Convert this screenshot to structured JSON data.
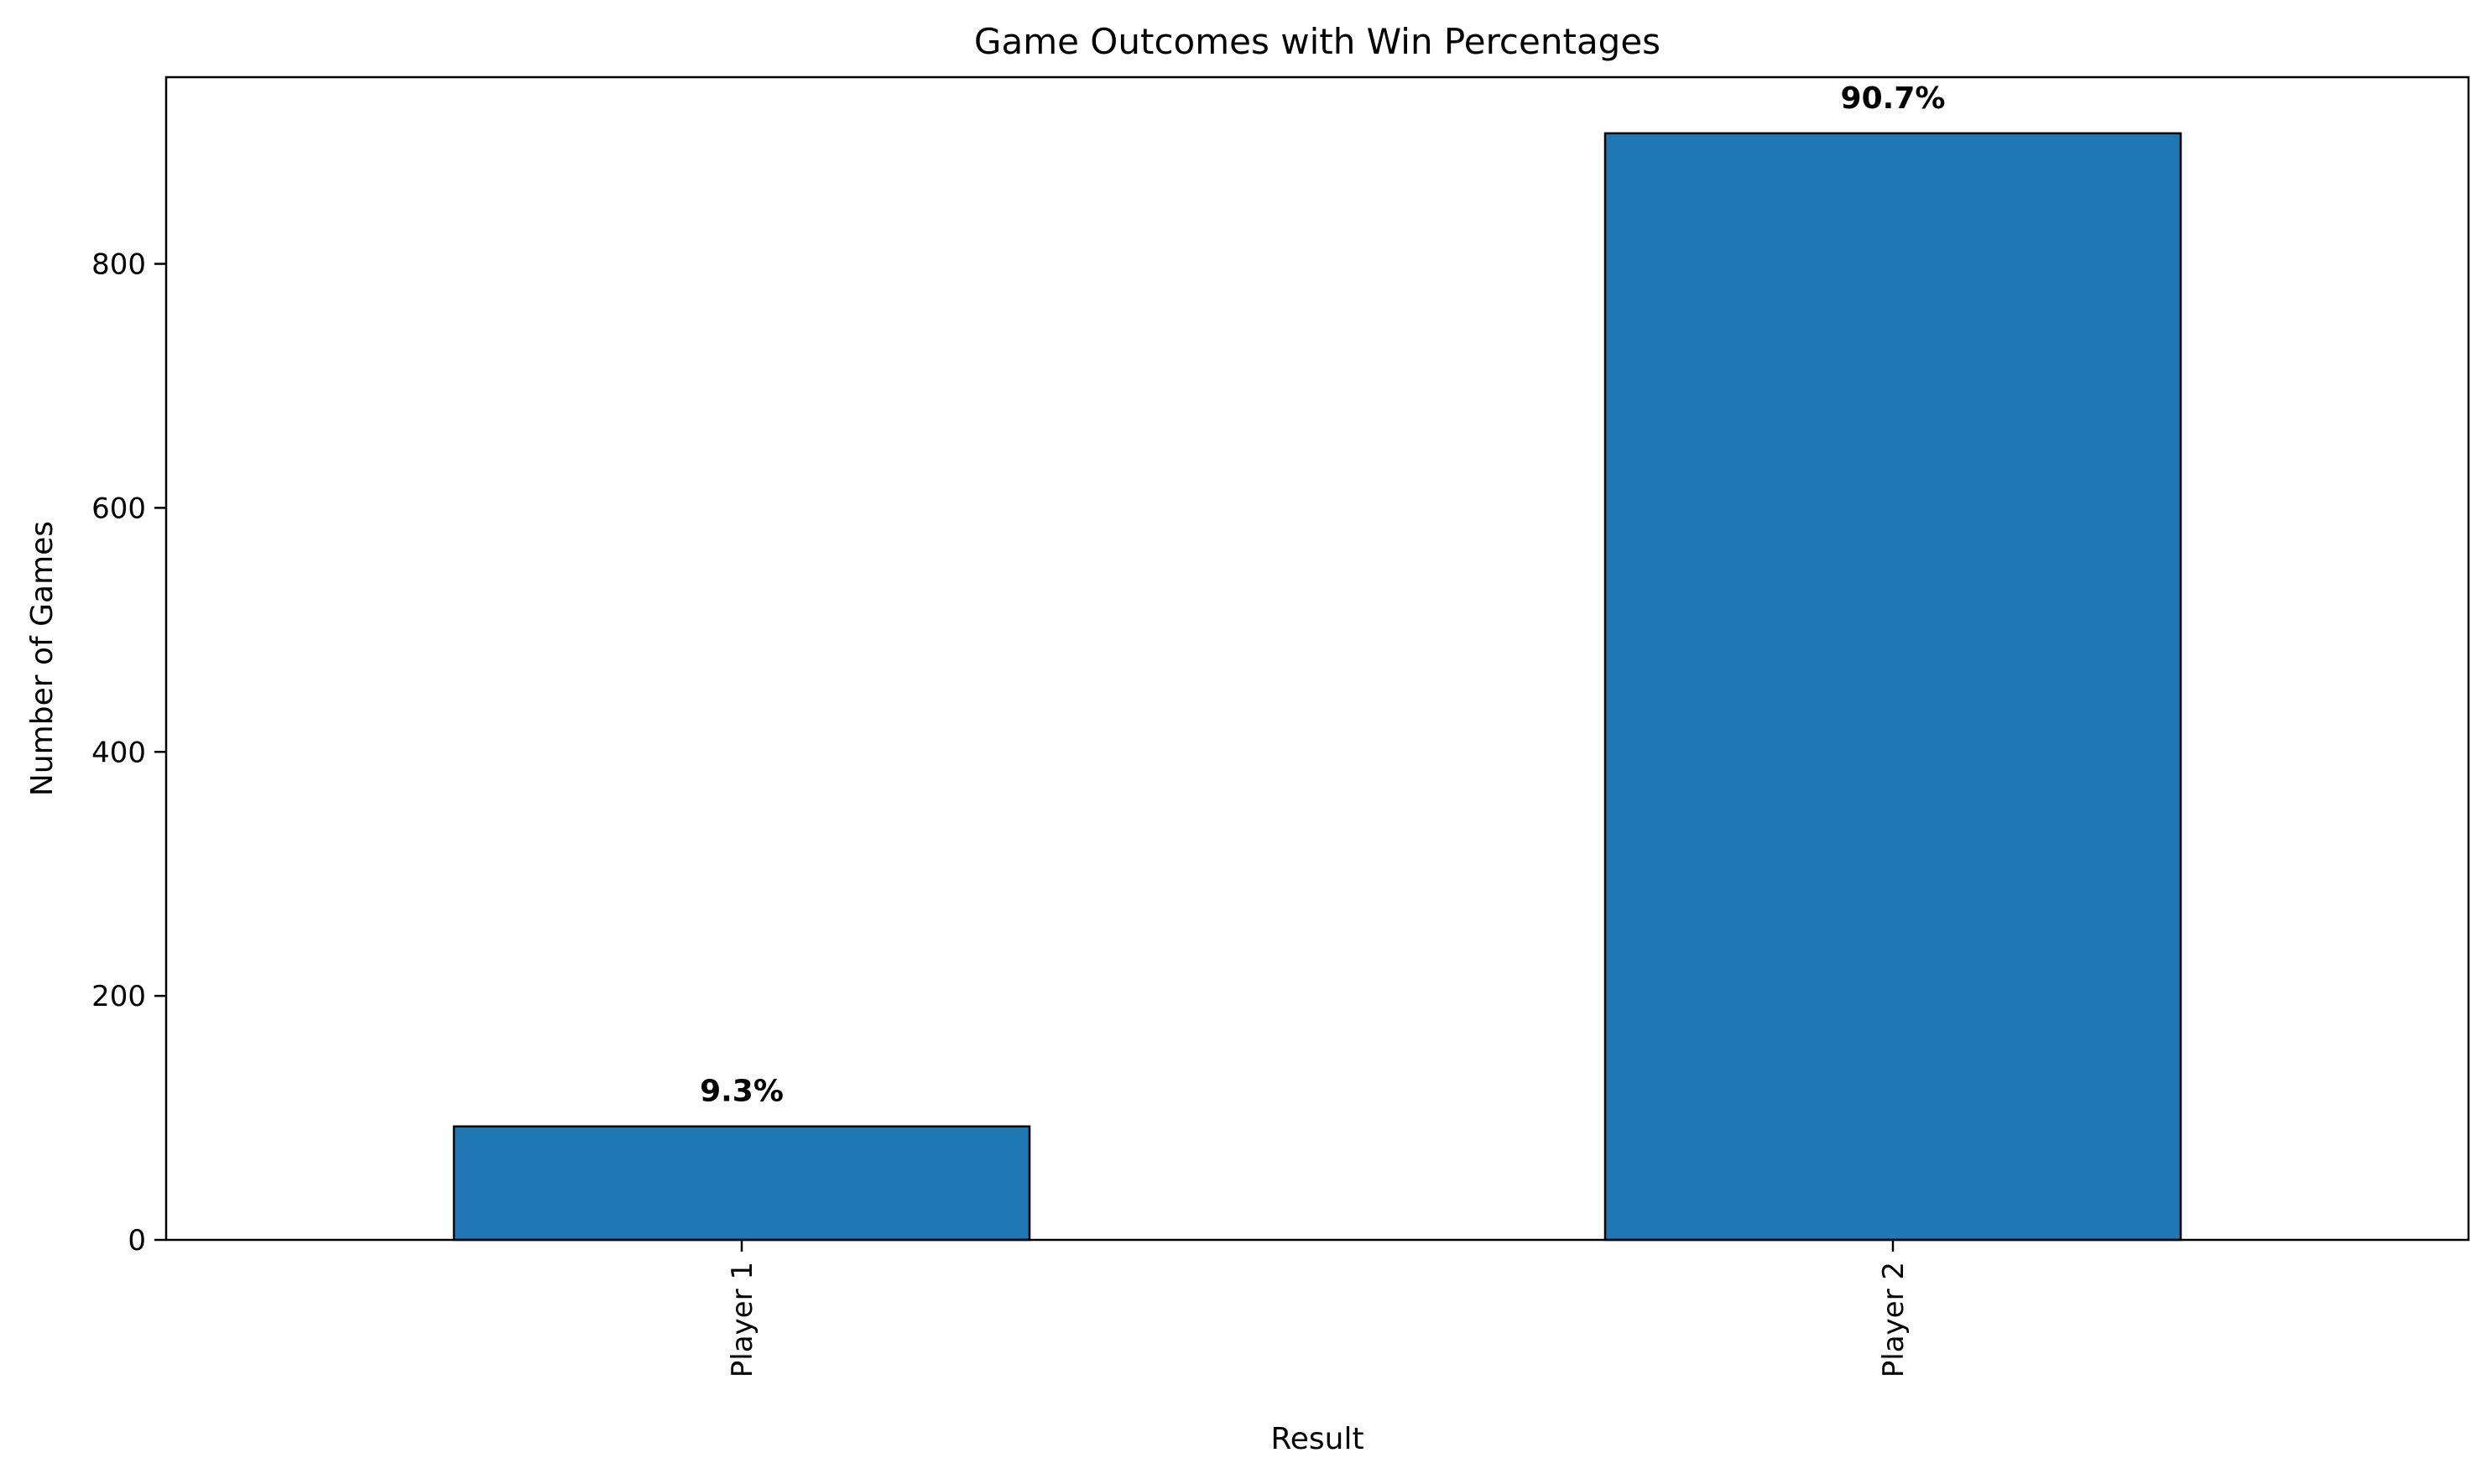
{
  "chart_data": {
    "type": "bar",
    "title": "Game Outcomes with Win Percentages",
    "xlabel": "Result",
    "ylabel": "Number of Games",
    "categories": [
      "Player 1",
      "Player 2"
    ],
    "values": [
      93,
      907
    ],
    "data_labels": [
      "9.3%",
      "90.7%"
    ],
    "ylim": [
      0,
      953
    ],
    "yticks": [
      0,
      200,
      400,
      600,
      800
    ],
    "ytick_labels": [
      "0",
      "200",
      "400",
      "600",
      "800"
    ],
    "grid": false,
    "legend": "none",
    "x_tick_rotation": "vertical",
    "bar_color": "#1f77b4",
    "bar_edge_color": "#000000"
  }
}
